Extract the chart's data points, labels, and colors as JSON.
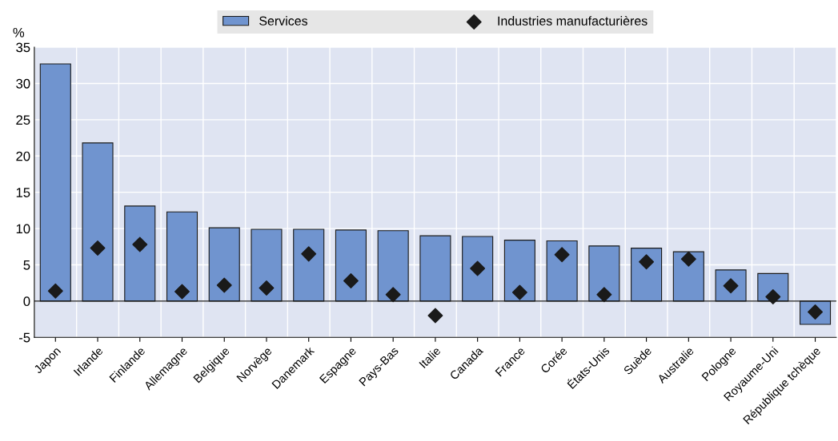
{
  "chart_data": {
    "type": "bar",
    "ylabel": "%",
    "categories": [
      "Japon",
      "Irlande",
      "Finlande",
      "Allemagne",
      "Belgique",
      "Norvège",
      "Danemark",
      "Espagne",
      "Pays-Bas",
      "Italie",
      "Canada",
      "France",
      "Corée",
      "États-Unis",
      "Suède",
      "Australie",
      "Pologne",
      "Royaume-Uni",
      "République tchèque"
    ],
    "series": [
      {
        "name": "Services",
        "color": "#7094cf",
        "values": [
          32.7,
          21.8,
          13.1,
          12.3,
          10.1,
          9.9,
          9.9,
          9.8,
          9.7,
          9.0,
          8.9,
          8.4,
          8.3,
          7.6,
          7.3,
          6.8,
          4.3,
          3.8,
          -3.2
        ]
      },
      {
        "name": "Industries manufacturières",
        "type": "scatter",
        "color": "#1a1a1a",
        "marker": "diamond",
        "values": [
          1.4,
          7.3,
          7.8,
          1.3,
          2.2,
          1.8,
          6.5,
          2.8,
          0.9,
          -2.0,
          4.5,
          1.2,
          6.4,
          0.9,
          5.4,
          5.8,
          2.1,
          0.6,
          -1.5
        ]
      }
    ],
    "ylim": [
      -5,
      35
    ],
    "yticks": [
      -5,
      0,
      5,
      10,
      15,
      20,
      25,
      30,
      35
    ],
    "grid": "y",
    "legend": "top"
  }
}
